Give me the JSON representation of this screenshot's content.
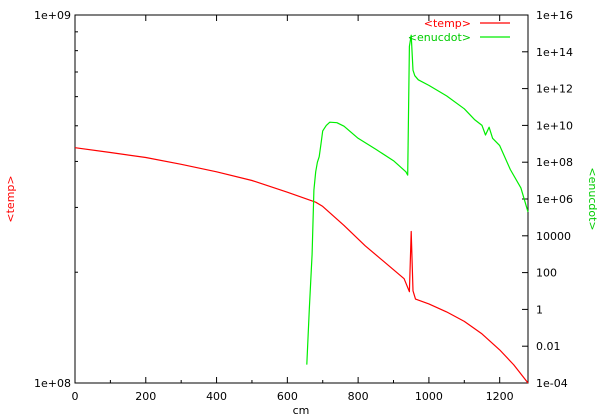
{
  "chart_data": {
    "type": "line",
    "xlabel": "cm",
    "ylabel_left": "<temp>",
    "ylabel_right": "<enucdot>",
    "xlim": [
      0,
      1280
    ],
    "ylim_left": [
      100000000,
      1000000000
    ],
    "ylim_right": [
      0.0001,
      1e+16
    ],
    "yscale_left": "log",
    "yscale_right": "log",
    "legend_position": "top-right",
    "x_ticks": [
      "0",
      "200",
      "400",
      "600",
      "800",
      "1000",
      "1200"
    ],
    "x_tick_values": [
      0,
      200,
      400,
      600,
      800,
      1000,
      1200
    ],
    "left_ticks": [
      "1e+08",
      "1e+09"
    ],
    "left_tick_values": [
      100000000,
      1000000000
    ],
    "right_ticks": [
      "1e-04",
      "0.01",
      "1",
      "100",
      "10000",
      "1e+06",
      "1e+08",
      "1e+10",
      "1e+12",
      "1e+14",
      "1e+16"
    ],
    "right_tick_values": [
      0.0001,
      0.01,
      1,
      100,
      10000,
      1000000,
      100000000,
      10000000000,
      1000000000000,
      100000000000000,
      1e+16
    ],
    "series": [
      {
        "name": "<temp>",
        "color": "#ff0000",
        "axis": "left",
        "x": [
          0,
          100,
          200,
          300,
          400,
          500,
          600,
          680,
          700,
          760,
          820,
          880,
          930,
          945,
          950,
          955,
          962,
          1000,
          1050,
          1100,
          1150,
          1200,
          1240,
          1280
        ],
        "y": [
          436000000,
          423000000,
          410000000,
          393000000,
          375000000,
          355000000,
          330000000,
          310000000,
          302000000,
          268000000,
          236000000,
          211000000,
          192000000,
          177000000,
          258000000,
          178000000,
          169000000,
          164000000,
          156000000,
          147000000,
          136000000,
          123000000,
          112000000,
          100000000
        ]
      },
      {
        "name": "<enucdot>",
        "color": "#00ee00",
        "axis": "right",
        "x": [
          655,
          662,
          670,
          675,
          680,
          685,
          690,
          695,
          700,
          710,
          720,
          740,
          760,
          800,
          850,
          900,
          935,
          940,
          945,
          950,
          955,
          960,
          970,
          1000,
          1050,
          1100,
          1130,
          1150,
          1160,
          1170,
          1180,
          1200,
          1230,
          1260,
          1280
        ],
        "y": [
          0.001,
          1,
          1000,
          3000000,
          30000000,
          100000000,
          200000000,
          1000000000,
          5000000000,
          10000000000,
          15000000000,
          14000000000,
          9000000000,
          2000000000,
          500000000,
          120000000,
          30000000,
          20000000,
          200000000000000,
          800000000000000,
          10000000000000,
          5000000000000,
          3000000000000,
          1500000000000,
          400000000000,
          80000000000,
          20000000000,
          10000000000,
          3000000000,
          8000000000,
          2000000000,
          800000000,
          40000000,
          4000000,
          200000
        ]
      }
    ]
  }
}
